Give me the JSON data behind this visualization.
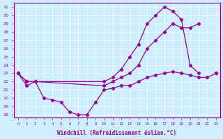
{
  "xlabel": "Windchill (Refroidissement éolien,°C)",
  "bg_color": "#cceeff",
  "line_color": "#990099",
  "xlim": [
    -0.5,
    23.5
  ],
  "ylim": [
    17.7,
    31.5
  ],
  "xticks": [
    0,
    1,
    2,
    3,
    4,
    5,
    6,
    7,
    8,
    9,
    10,
    11,
    12,
    13,
    14,
    15,
    16,
    17,
    18,
    19,
    20,
    21,
    22,
    23
  ],
  "yticks": [
    18,
    19,
    20,
    21,
    22,
    23,
    24,
    25,
    26,
    27,
    28,
    29,
    30,
    31
  ],
  "series": [
    {
      "x": [
        0,
        1,
        2,
        10,
        11,
        12,
        13,
        14,
        15,
        16,
        17,
        18,
        19,
        20,
        21,
        22,
        23
      ],
      "y": [
        23,
        22,
        22,
        22,
        22.5,
        23.5,
        25,
        26.5,
        29.0,
        30.0,
        31.0,
        30.5,
        29.5,
        24.0,
        23.0,
        null,
        null
      ]
    },
    {
      "x": [
        0,
        1,
        2,
        10,
        11,
        12,
        13,
        14,
        15,
        16,
        17,
        18,
        19,
        20,
        21,
        22,
        23
      ],
      "y": [
        23,
        22,
        22,
        21.5,
        22,
        22.5,
        23,
        24,
        26.0,
        27.0,
        28.0,
        29.0,
        28.5,
        28.5,
        29.0,
        null,
        23.0
      ]
    },
    {
      "x": [
        0,
        1,
        2,
        3,
        4,
        5,
        6,
        7,
        8,
        9,
        10,
        11,
        12,
        13,
        14,
        15,
        16,
        17,
        18,
        19,
        20,
        21,
        22,
        23
      ],
      "y": [
        23,
        21.5,
        22.0,
        20.0,
        19.8,
        19.5,
        18.3,
        18.0,
        18.0,
        19.5,
        21.0,
        21.2,
        21.5,
        21.5,
        22.0,
        22.5,
        22.8,
        23.0,
        23.2,
        23.0,
        22.8,
        22.5,
        22.5,
        23.0
      ]
    }
  ]
}
